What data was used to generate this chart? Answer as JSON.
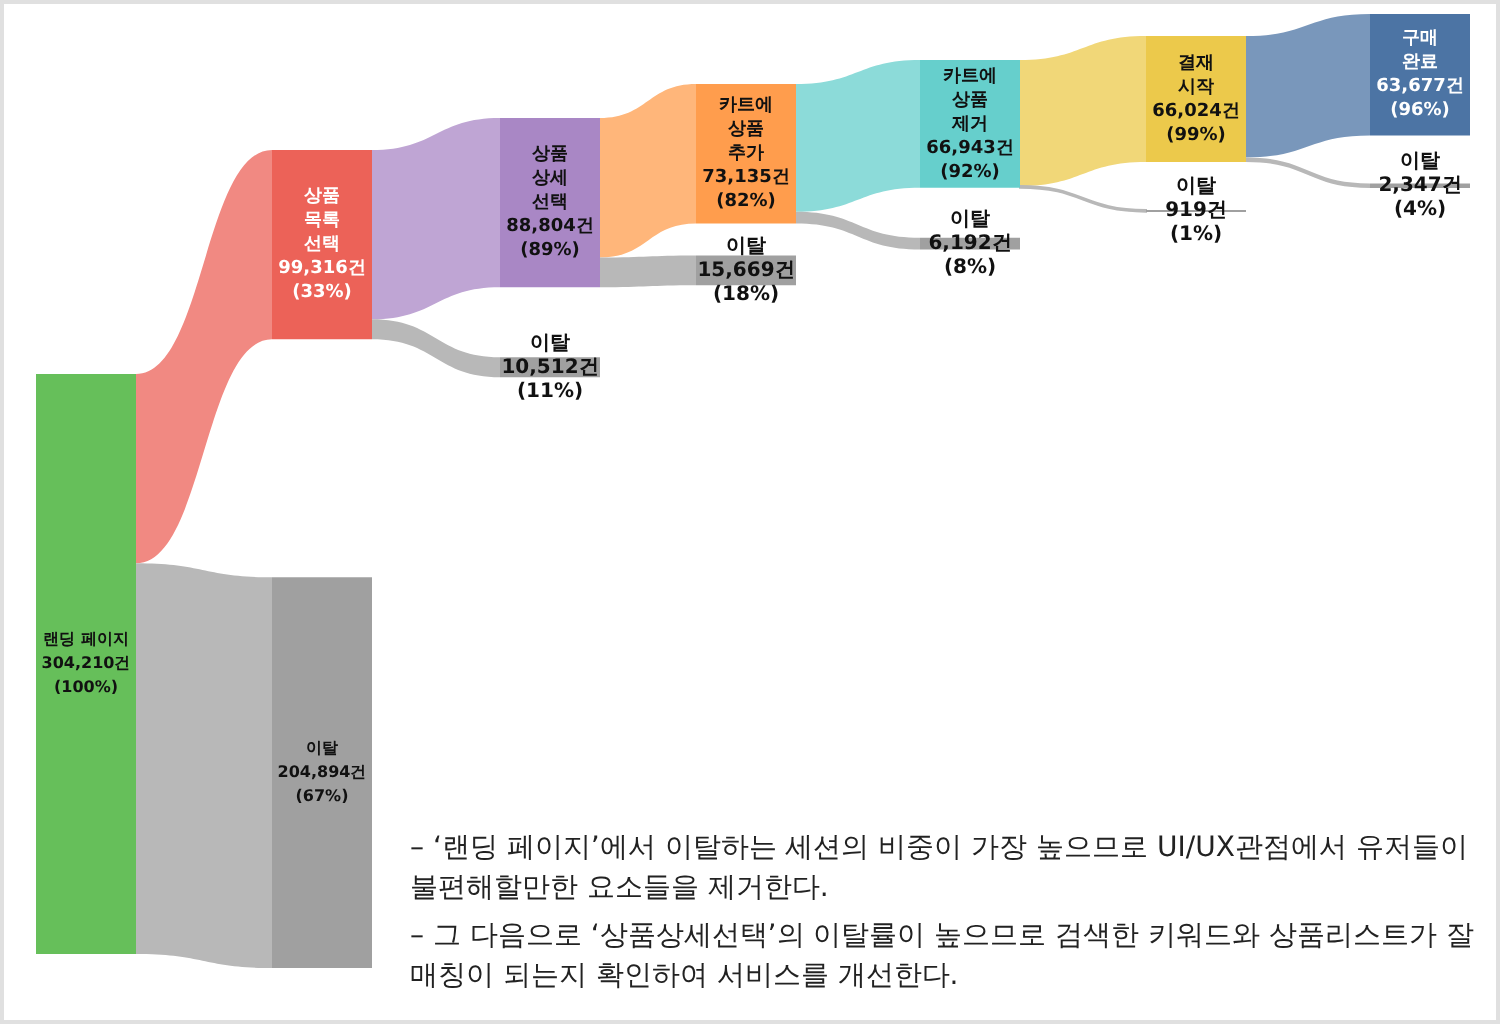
{
  "chart_data": {
    "type": "other",
    "categories": [
      "랜딩 페이지",
      "상품 목록 선택",
      "이탈",
      "상품 상세 선택",
      "이탈",
      "카트에 상품 추가",
      "이탈",
      "카트에 상품 제거",
      "이탈",
      "결재 시작",
      "이탈",
      "구매 완료",
      "이탈"
    ],
    "values": [
      304210,
      99316,
      204894,
      88804,
      10512,
      73135,
      15669,
      66943,
      6192,
      66024,
      919,
      63677,
      2347
    ],
    "value_labels": [
      "304,210건 (100%)",
      "99,316건 (33%)",
      "204,894건 (67%)",
      "88,804건 (89%)",
      "10,512건 (11%)",
      "73,135건 (82%)",
      "15,669건 (18%)",
      "66,943건 (92%)",
      "6,192건 (8%)",
      "66,024건 (99%)",
      "919건 (1%)",
      "63,677건 (96%)",
      "2,347건 (4%)"
    ],
    "colors": [
      "#66bf5a",
      "#ec6258",
      "#a0a0a0",
      "#a987c5",
      "#a0a0a0",
      "#ff9d4d",
      "#a0a0a0",
      "#66cfcc",
      "#a0a0a0",
      "#ecc94b",
      "#a0a0a0",
      "#4c74a4",
      "#a0a0a0"
    ],
    "annotations": [
      "– ‘랜딩 페이지’에서 이탈하는 세션의 비중이 가장 높으므로 UI/UX관점에서 유저들이 불편해할만한 요소들을 제거한다.",
      "– 그 다음으로 ‘상품상세선택’의 이탈률이 높으므로 검색한 키워드와 상품리스트가 잘 매칭이 되는지 확인하여 서비스를 개선한다."
    ]
  }
}
